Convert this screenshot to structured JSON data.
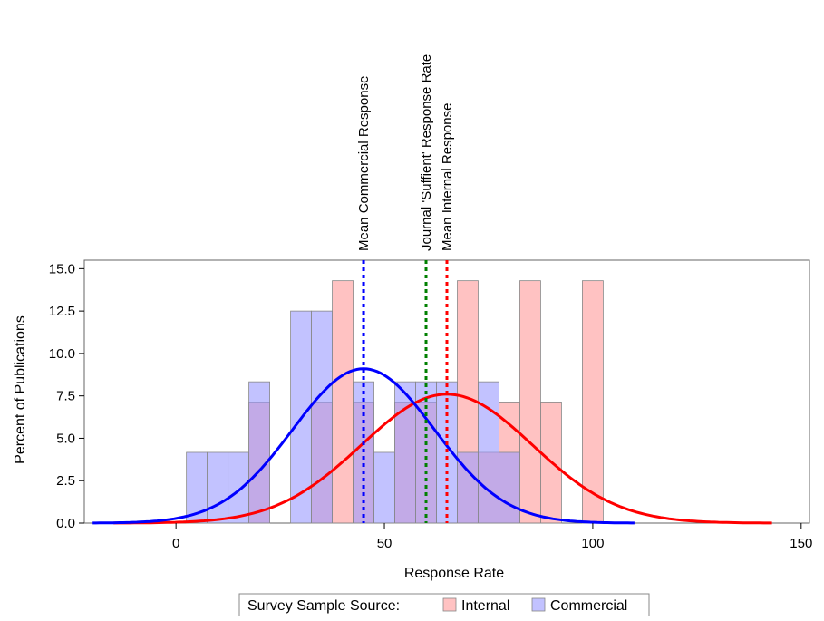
{
  "chart_data": {
    "type": "bar",
    "title": "",
    "xlabel": "Response Rate",
    "ylabel": "Percent of Publications",
    "xlim": [
      -22,
      152
    ],
    "ylim": [
      0,
      15.5
    ],
    "xticks": [
      0,
      50,
      100,
      150
    ],
    "xtick_labels": [
      "0",
      "50",
      "100",
      "150"
    ],
    "yticks": [
      0,
      2.5,
      5,
      7.5,
      10,
      12.5,
      15
    ],
    "ytick_labels": [
      "0.0",
      "2.5",
      "5.0",
      "7.5",
      "10.0",
      "12.5",
      "15.0"
    ],
    "bin_width": 5,
    "grid": false,
    "series": [
      {
        "name": "Internal",
        "color": "#ff9999",
        "bins": [
          {
            "center": 20,
            "value": 7.14
          },
          {
            "center": 35,
            "value": 7.14
          },
          {
            "center": 40,
            "value": 14.29
          },
          {
            "center": 45,
            "value": 7.14
          },
          {
            "center": 55,
            "value": 7.14
          },
          {
            "center": 60,
            "value": 7.14
          },
          {
            "center": 70,
            "value": 14.29
          },
          {
            "center": 75,
            "value": 4.17
          },
          {
            "center": 80,
            "value": 7.14
          },
          {
            "center": 85,
            "value": 14.29
          },
          {
            "center": 90,
            "value": 7.14
          },
          {
            "center": 100,
            "value": 14.29
          }
        ],
        "normal_fit": {
          "mean": 65,
          "peak": 7.6,
          "sd": 20.5,
          "x_range": [
            -15,
            143
          ]
        },
        "mean_line": {
          "x": 65,
          "label": "Mean Internal Response",
          "color": "#ff0000"
        }
      },
      {
        "name": "Commercial",
        "color": "#9999ff",
        "bins": [
          {
            "center": 5,
            "value": 4.17
          },
          {
            "center": 10,
            "value": 4.17
          },
          {
            "center": 15,
            "value": 4.17
          },
          {
            "center": 20,
            "value": 8.33
          },
          {
            "center": 30,
            "value": 12.5
          },
          {
            "center": 35,
            "value": 12.5
          },
          {
            "center": 45,
            "value": 8.33
          },
          {
            "center": 50,
            "value": 4.17
          },
          {
            "center": 55,
            "value": 8.33
          },
          {
            "center": 60,
            "value": 8.33
          },
          {
            "center": 65,
            "value": 8.33
          },
          {
            "center": 70,
            "value": 4.17
          },
          {
            "center": 75,
            "value": 8.33
          },
          {
            "center": 80,
            "value": 4.17
          }
        ],
        "normal_fit": {
          "mean": 45,
          "peak": 9.1,
          "sd": 17,
          "x_range": [
            -20,
            110
          ]
        },
        "mean_line": {
          "x": 45,
          "label": "Mean Commercial Response",
          "color": "#0000ff"
        }
      }
    ],
    "reference_lines": [
      {
        "x": 60,
        "label": "Journal 'Suffient' Response Rate",
        "color": "#008000"
      }
    ],
    "legend": {
      "title": "Survey Sample Source:",
      "items": [
        "Internal",
        "Commercial"
      ],
      "position": "bottom"
    }
  }
}
